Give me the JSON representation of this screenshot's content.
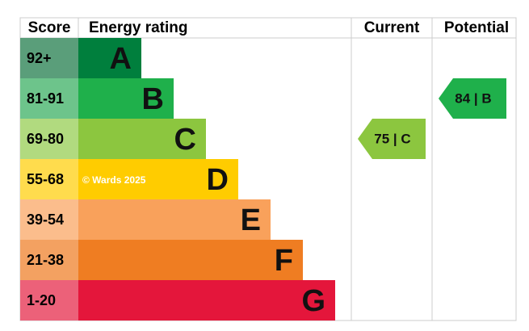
{
  "header": {
    "score": "Score",
    "rating": "Energy rating",
    "current": "Current",
    "potential": "Potential"
  },
  "rows": [
    {
      "score": "92+",
      "letter": "A",
      "color": "#007f3d",
      "score_color": "#5a9e7a"
    },
    {
      "score": "81-91",
      "letter": "B",
      "color": "#1fb04b",
      "score_color": "#6dc48b"
    },
    {
      "score": "69-80",
      "letter": "C",
      "color": "#8cc63f",
      "score_color": "#b1da7f"
    },
    {
      "score": "55-68",
      "letter": "D",
      "color": "#ffcc00",
      "score_color": "#ffdc4d"
    },
    {
      "score": "39-54",
      "letter": "E",
      "color": "#f9a15b",
      "score_color": "#fbbd8c"
    },
    {
      "score": "21-38",
      "letter": "F",
      "color": "#ef7d22",
      "score_color": "#f3a161"
    },
    {
      "score": "1-20",
      "letter": "G",
      "color": "#e4163b",
      "score_color": "#ec6179"
    }
  ],
  "watermark": "© Wards 2025",
  "current": {
    "value": 75,
    "label": "75 | C"
  },
  "potential": {
    "value": 84,
    "label": "84 | B"
  }
}
